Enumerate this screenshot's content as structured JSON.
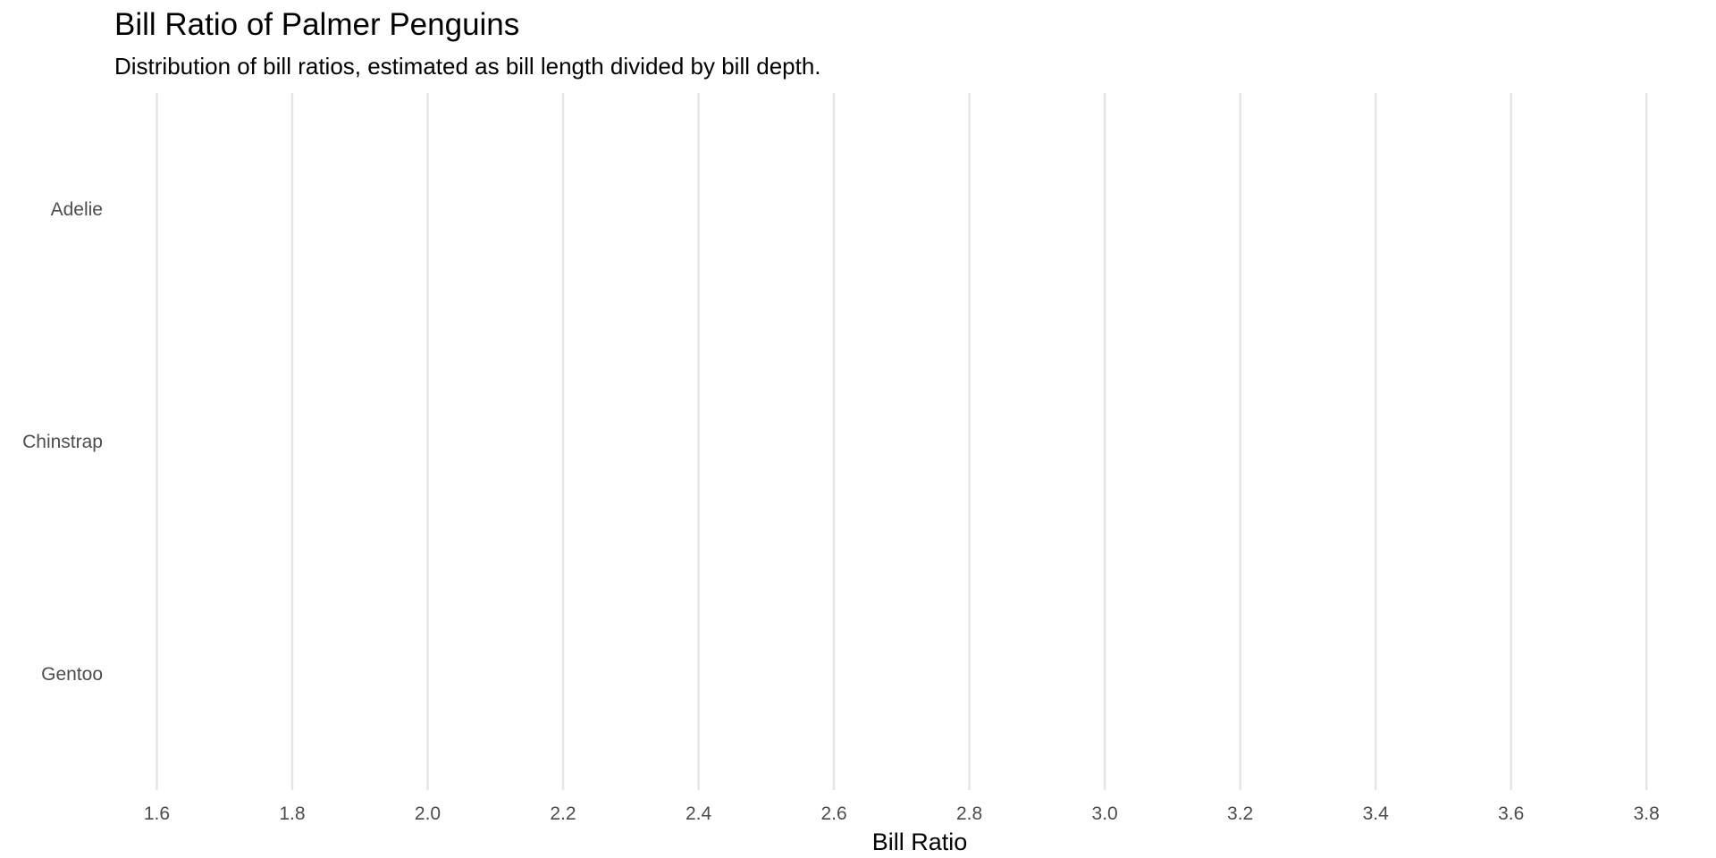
{
  "chart_data": {
    "type": "box",
    "title": "Bill Ratio of Palmer Penguins",
    "subtitle": "Distribution of bill ratios, estimated as bill length divided by bill depth.",
    "xlabel": "Bill Ratio",
    "ylabel": "",
    "categories": [
      "Adelie",
      "Chinstrap",
      "Gentoo"
    ],
    "xlim": [
      1.54,
      3.9
    ],
    "x_ticks": [
      "1.6",
      "1.8",
      "2.0",
      "2.2",
      "2.4",
      "2.6",
      "2.8",
      "3.0",
      "3.2",
      "3.4",
      "3.6",
      "3.8"
    ],
    "grid": "vertical major",
    "legend": "none",
    "series": []
  },
  "colors": {
    "grid": "#e5e5e5",
    "tick_text": "#4d4d4d",
    "text": "#000000",
    "background": "#ffffff"
  }
}
